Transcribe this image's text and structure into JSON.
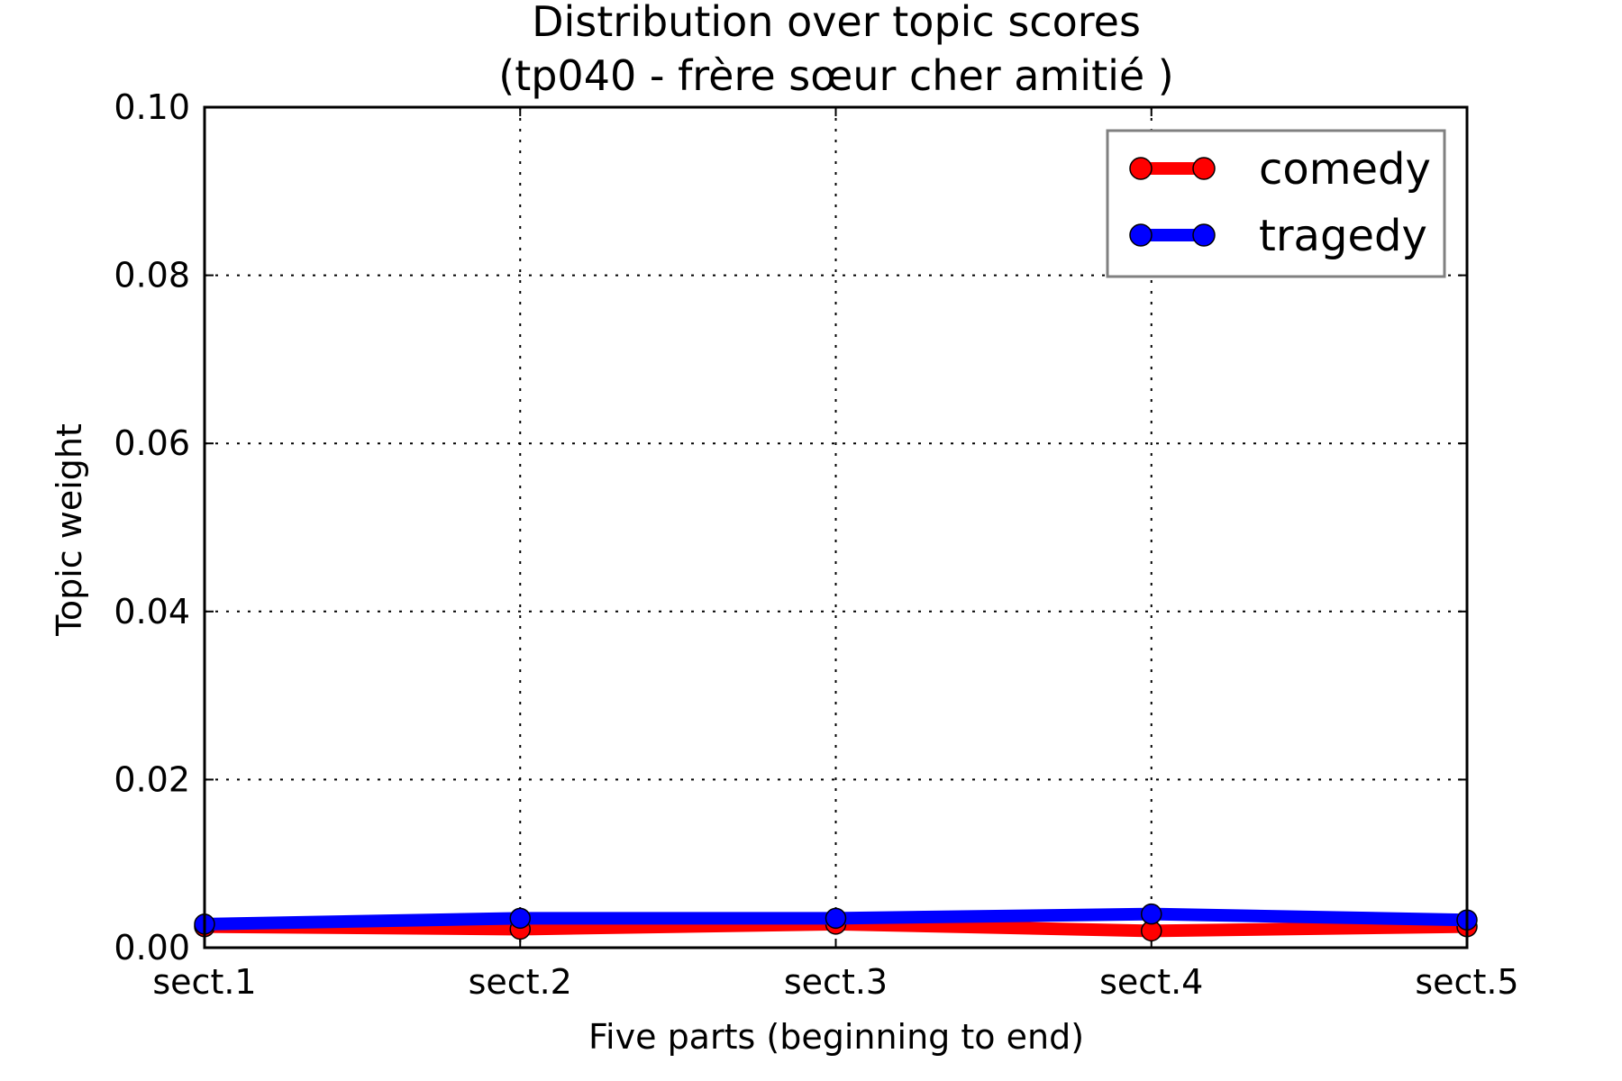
{
  "chart_data": {
    "type": "line",
    "title_line1": "Distribution over topic scores",
    "title_line2": "(tp040 - frère sœur cher amitié )",
    "xlabel": "Five parts (beginning to end)",
    "ylabel": "Topic weight",
    "categories": [
      "sect.1",
      "sect.2",
      "sect.3",
      "sect.4",
      "sect.5"
    ],
    "ylim": [
      0,
      0.1
    ],
    "yticks": [
      "0.00",
      "0.02",
      "0.04",
      "0.06",
      "0.08",
      "0.10"
    ],
    "grid": true,
    "legend_position": "upper right",
    "series": [
      {
        "name": "comedy",
        "color": "#ff0000",
        "values": [
          0.0025,
          0.0022,
          0.0028,
          0.002,
          0.0025
        ]
      },
      {
        "name": "tragedy",
        "color": "#0000ff",
        "values": [
          0.0028,
          0.0035,
          0.0035,
          0.004,
          0.0033
        ]
      }
    ]
  }
}
